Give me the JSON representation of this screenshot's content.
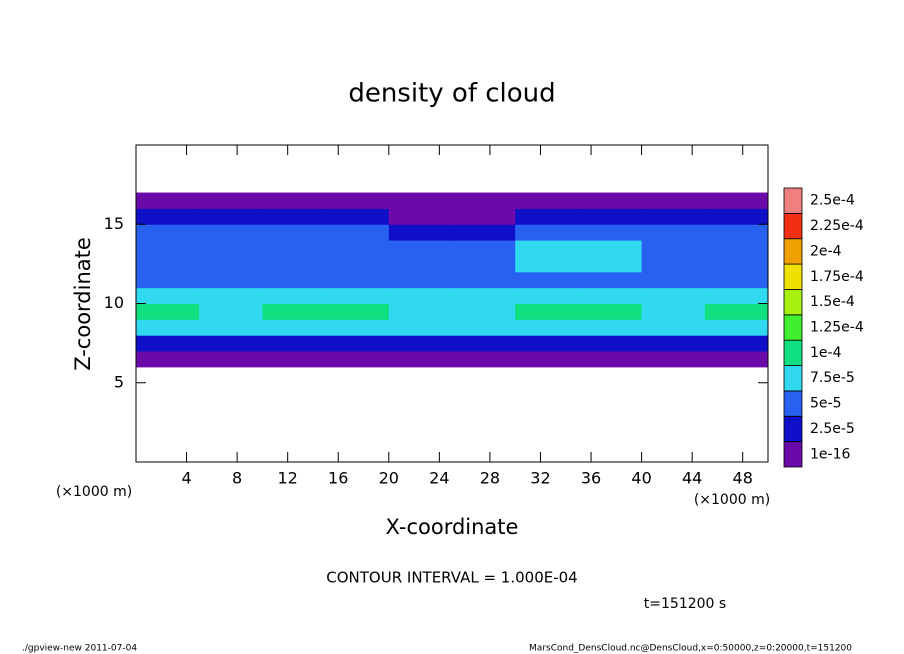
{
  "chart_data": {
    "type": "heatmap",
    "title": "density of cloud",
    "x_label": "X-coordinate",
    "y_label": "Z-coordinate",
    "x_unit": "(×1000 m)",
    "y_unit": "(×1000 m)",
    "xlim": [
      0,
      50
    ],
    "xticks": [
      4,
      8,
      12,
      16,
      20,
      24,
      28,
      32,
      36,
      40,
      44,
      48
    ],
    "ylim": [
      0,
      20
    ],
    "yticks": [
      5,
      10,
      15
    ],
    "x": [
      2.5,
      7.5,
      12.5,
      17.5,
      22.5,
      27.5,
      32.5,
      37.5,
      42.5,
      47.5
    ],
    "y": [
      6.5,
      7.5,
      8.5,
      9.5,
      10.5,
      11.5,
      12.5,
      13.5,
      14.5,
      15.5,
      16.5
    ],
    "values": [
      [
        1e-06,
        1e-06,
        1e-06,
        1e-06,
        1e-06,
        1e-06,
        1e-06,
        1e-06,
        1e-06,
        1e-06
      ],
      [
        3e-05,
        3e-05,
        3e-05,
        3e-05,
        3e-05,
        3e-05,
        3e-05,
        3e-05,
        3e-05,
        3e-05
      ],
      [
        8e-05,
        8e-05,
        8e-05,
        8e-05,
        8e-05,
        8e-05,
        8e-05,
        8e-05,
        8e-05,
        8e-05
      ],
      [
        0.000105,
        8.5e-05,
        0.000105,
        0.000105,
        8.5e-05,
        8.5e-05,
        0.000105,
        0.000105,
        8.5e-05,
        0.000105
      ],
      [
        8e-05,
        8e-05,
        8e-05,
        8e-05,
        8e-05,
        8e-05,
        8e-05,
        8e-05,
        8e-05,
        8e-05
      ],
      [
        7e-05,
        7e-05,
        7e-05,
        7e-05,
        7e-05,
        7e-05,
        7e-05,
        7e-05,
        7e-05,
        7e-05
      ],
      [
        6.5e-05,
        6.5e-05,
        6.5e-05,
        6.5e-05,
        6.5e-05,
        6.5e-05,
        8e-05,
        8e-05,
        6.5e-05,
        6.5e-05
      ],
      [
        6e-05,
        6e-05,
        6e-05,
        6e-05,
        6e-05,
        6e-05,
        8e-05,
        8e-05,
        6e-05,
        6e-05
      ],
      [
        5.5e-05,
        5.5e-05,
        5.5e-05,
        5.5e-05,
        3e-05,
        3e-05,
        5.5e-05,
        5.5e-05,
        5.5e-05,
        5.5e-05
      ],
      [
        3e-05,
        3e-05,
        3e-05,
        3e-05,
        2e-05,
        2e-05,
        3e-05,
        3e-05,
        3e-05,
        3e-05
      ],
      [
        1e-06,
        1e-06,
        1e-06,
        1e-06,
        1e-06,
        1e-06,
        1e-06,
        1e-06,
        1e-06,
        1e-06
      ]
    ],
    "levels": [
      {
        "value": 1e-16,
        "label": "1e-16"
      },
      {
        "value": 2.5e-05,
        "label": "2.5e-5"
      },
      {
        "value": 5e-05,
        "label": "5e-5"
      },
      {
        "value": 7.5e-05,
        "label": "7.5e-5"
      },
      {
        "value": 0.0001,
        "label": "1e-4"
      },
      {
        "value": 0.000125,
        "label": "1.25e-4"
      },
      {
        "value": 0.00015,
        "label": "1.5e-4"
      },
      {
        "value": 0.000175,
        "label": "1.75e-4"
      },
      {
        "value": 0.0002,
        "label": "2e-4"
      },
      {
        "value": 0.000225,
        "label": "2.25e-4"
      },
      {
        "value": 0.00025,
        "label": "2.5e-4"
      }
    ],
    "level_colors": [
      "#6a0aa8",
      "#1010c8",
      "#2860f0",
      "#30d8f0",
      "#10e080",
      "#40f030",
      "#a8f010",
      "#f0e000",
      "#f0a000",
      "#f03010",
      "#f08080"
    ],
    "contour_note": "CONTOUR INTERVAL = 1.000E-04",
    "time_label": "t=151200 s",
    "footer_left": "./gpview-new  2011-07-04",
    "footer_right": "MarsCond_DensCloud.nc@DensCloud,x=0:50000,z=0:20000,t=151200"
  }
}
